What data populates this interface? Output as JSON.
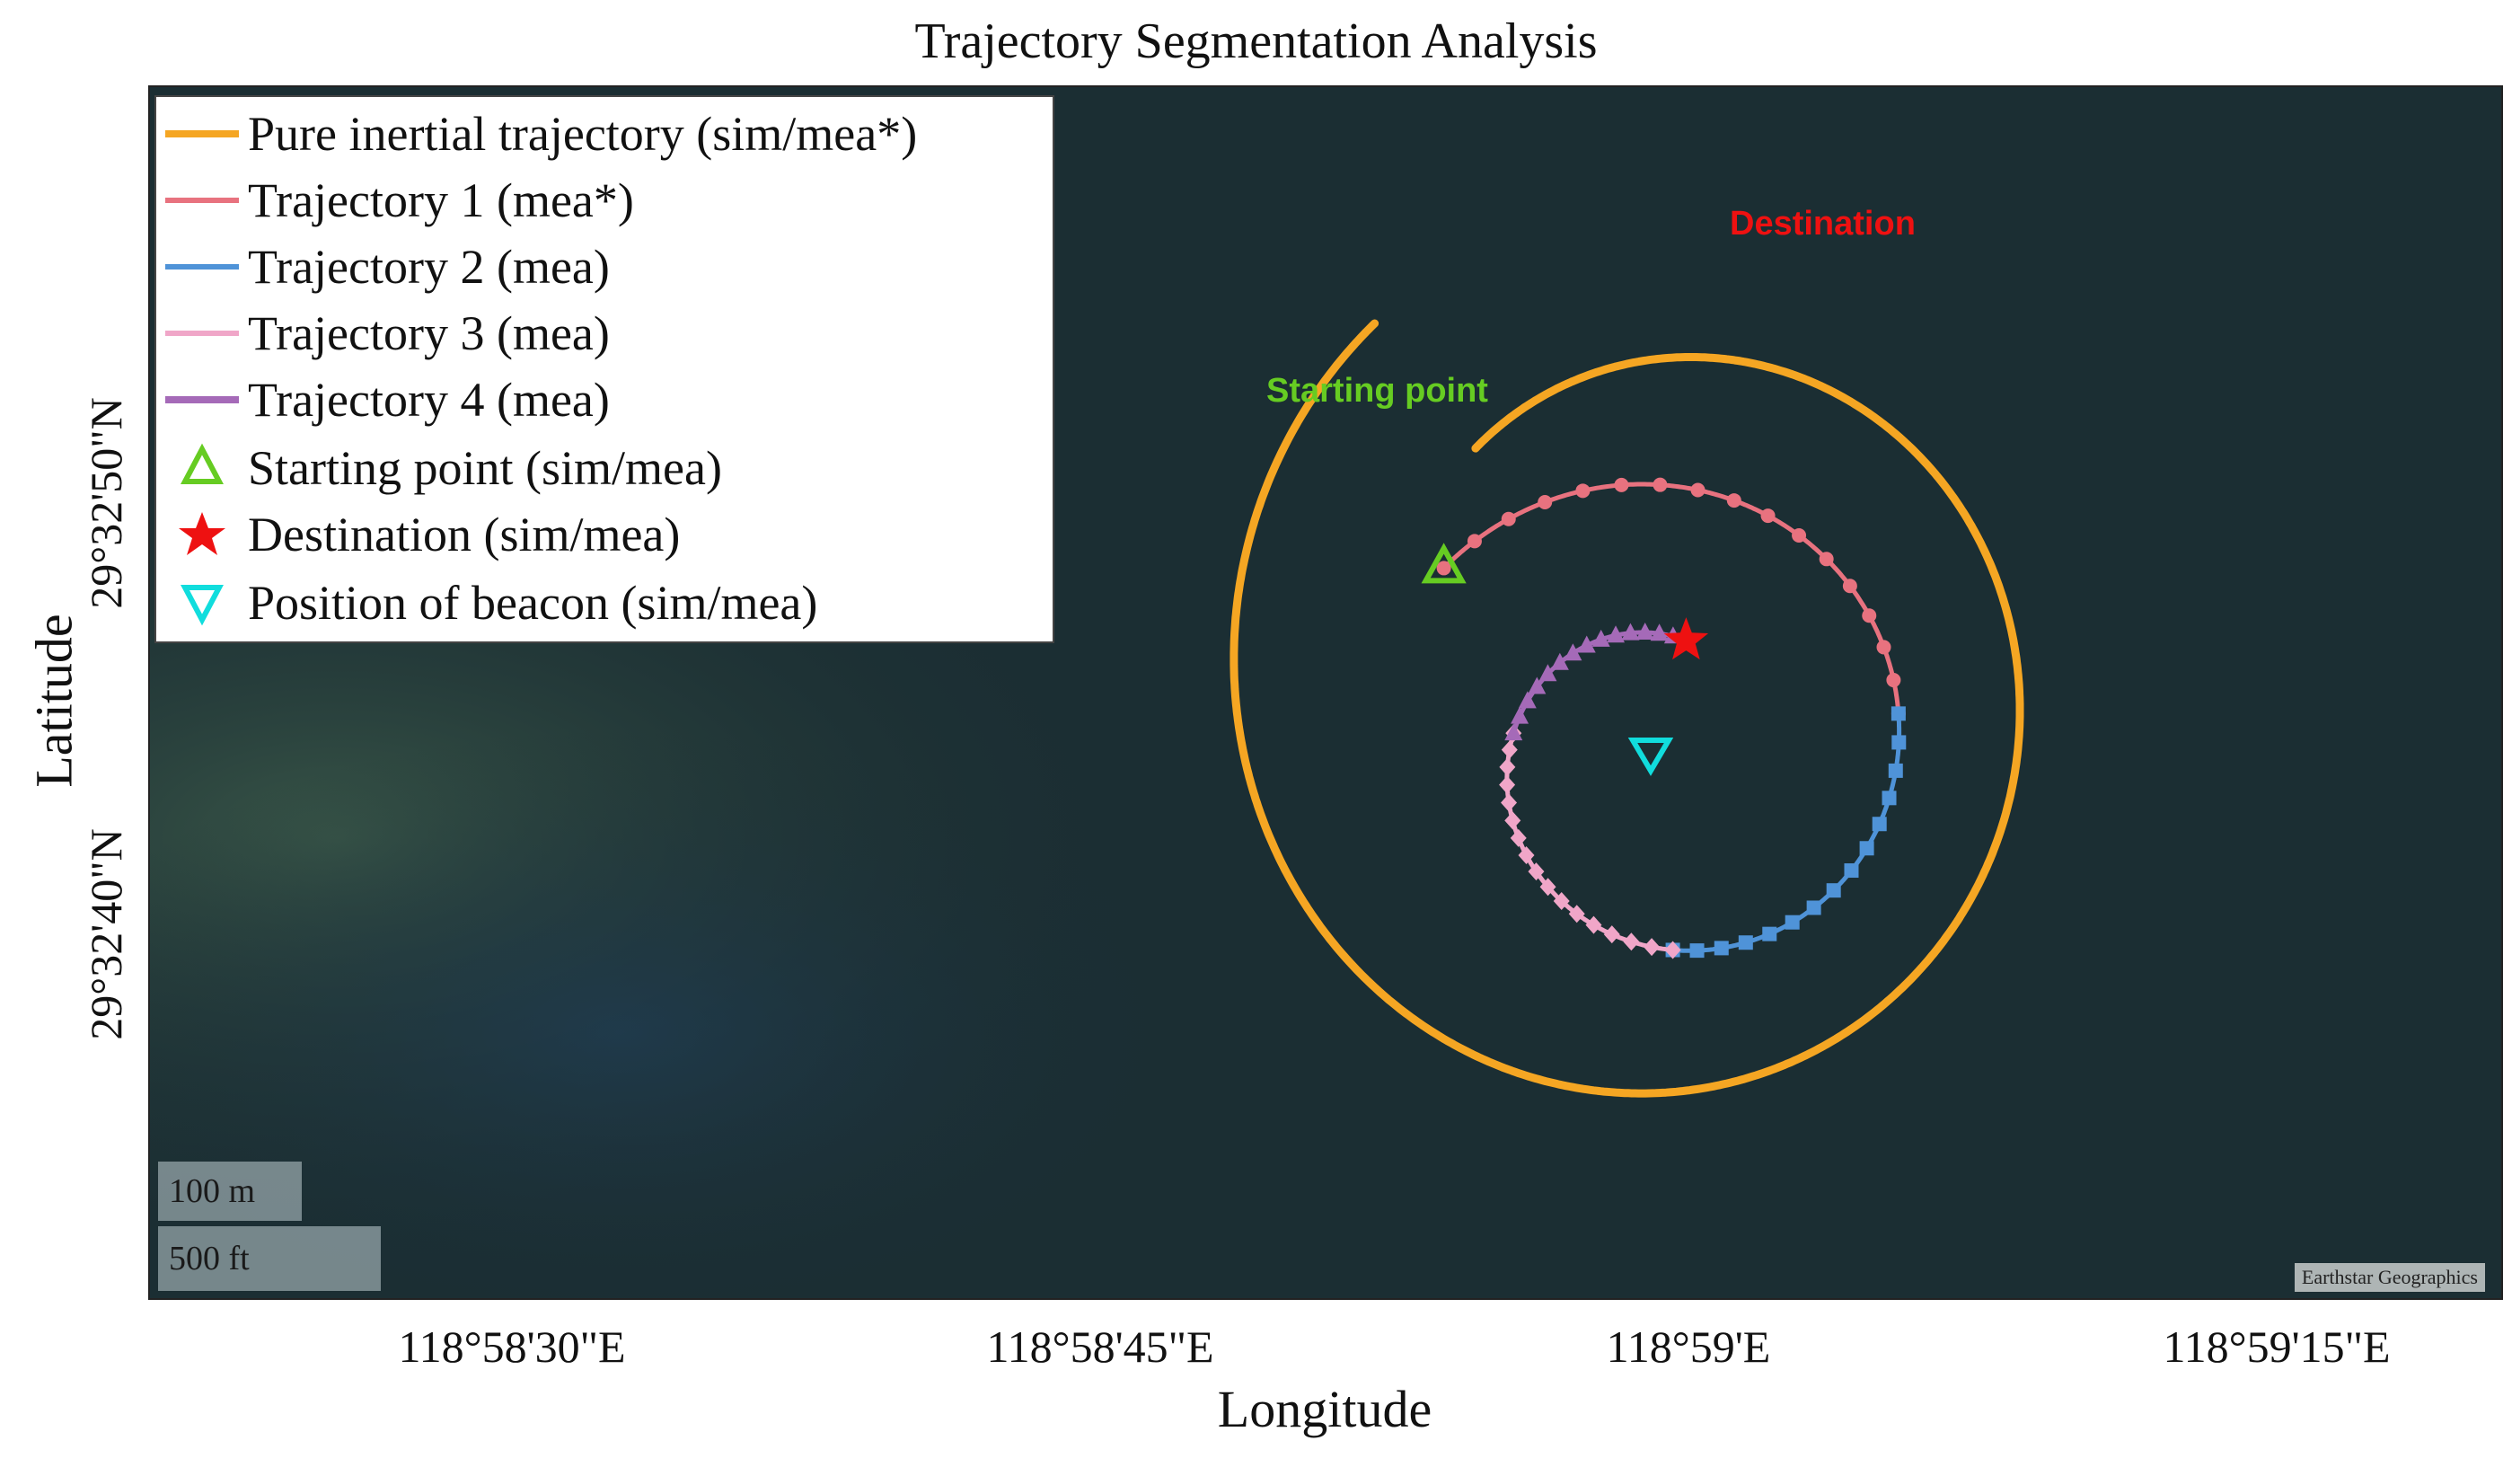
{
  "chart_data": {
    "type": "map-trajectory",
    "title": "Trajectory Segmentation Analysis",
    "xlabel": "Longitude",
    "ylabel": "Latitude",
    "x_ticks": [
      "118°58'30\"E",
      "118°58'45\"E",
      "118°59'E",
      "118°59'15\"E"
    ],
    "y_ticks": [
      "29°32'50\"N",
      "29°32'40\"N"
    ],
    "legend_placement": "top-left",
    "legend": [
      {
        "label": "Pure inertial trajectory (sim/mea*)",
        "symbol": "line",
        "color": "#f5a623"
      },
      {
        "label": "Trajectory 1 (mea*)",
        "symbol": "line",
        "color": "#e8727f"
      },
      {
        "label": "Trajectory 2 (mea)",
        "symbol": "line",
        "color": "#4f93d8"
      },
      {
        "label": "Trajectory 3 (mea)",
        "symbol": "line",
        "color": "#f0a6c8"
      },
      {
        "label": "Trajectory 4 (mea)",
        "symbol": "line",
        "color": "#a56ab8"
      },
      {
        "label": "Starting point (sim/mea)",
        "symbol": "triangle-up",
        "color": "#66cc22"
      },
      {
        "label": "Destination (sim/mea)",
        "symbol": "star",
        "color": "#ee1111"
      },
      {
        "label": "Position of beacon (sim/mea)",
        "symbol": "triangle-down",
        "color": "#11dddd"
      }
    ],
    "annotations": {
      "start": "Starting point",
      "destination": "Destination"
    },
    "colors": {
      "pure_inertial": "#f5a623",
      "trajectory_1": "#e8727f",
      "trajectory_2": "#4f93d8",
      "trajectory_3": "#f0a6c8",
      "trajectory_4": "#a56ab8",
      "start": "#66cc22",
      "destination": "#ee1111",
      "beacon": "#11dddd",
      "map_water": "#1b2e33"
    },
    "markers": {
      "trajectory_1": "circle",
      "trajectory_2": "square",
      "trajectory_3": "diamond",
      "trajectory_4": "triangle-up"
    }
  },
  "scale_bar": {
    "metric": "100 m",
    "imperial": "500 ft"
  },
  "attribution": "Earthstar Geographics"
}
